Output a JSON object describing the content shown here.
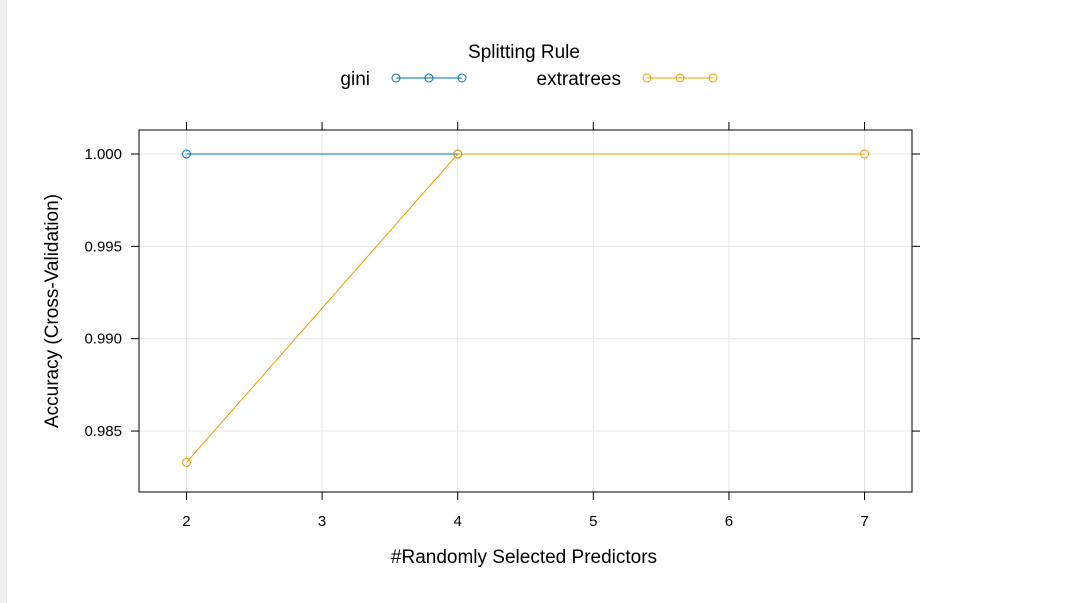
{
  "chart_data": {
    "type": "line",
    "legend_title": "Splitting Rule",
    "legend_placement": "top-center",
    "xlabel": "#Randomly Selected Predictors",
    "ylabel": "Accuracy (Cross-Validation)",
    "xlim": [
      1.65,
      7.35
    ],
    "ylim": [
      0.9817,
      1.0013
    ],
    "x_ticks": [
      2,
      3,
      4,
      5,
      6,
      7
    ],
    "y_ticks": [
      0.985,
      0.99,
      0.995,
      1.0
    ],
    "y_tick_labels": [
      "0.985",
      "0.990",
      "0.995",
      "1.000"
    ],
    "grid": true,
    "series": [
      {
        "name": "gini",
        "color": "#0072B2",
        "x": [
          2,
          4
        ],
        "y": [
          1.0,
          1.0
        ]
      },
      {
        "name": "extratrees",
        "color": "#E69F00",
        "x": [
          2,
          4,
          7
        ],
        "y": [
          0.9833,
          1.0,
          1.0
        ]
      }
    ]
  }
}
